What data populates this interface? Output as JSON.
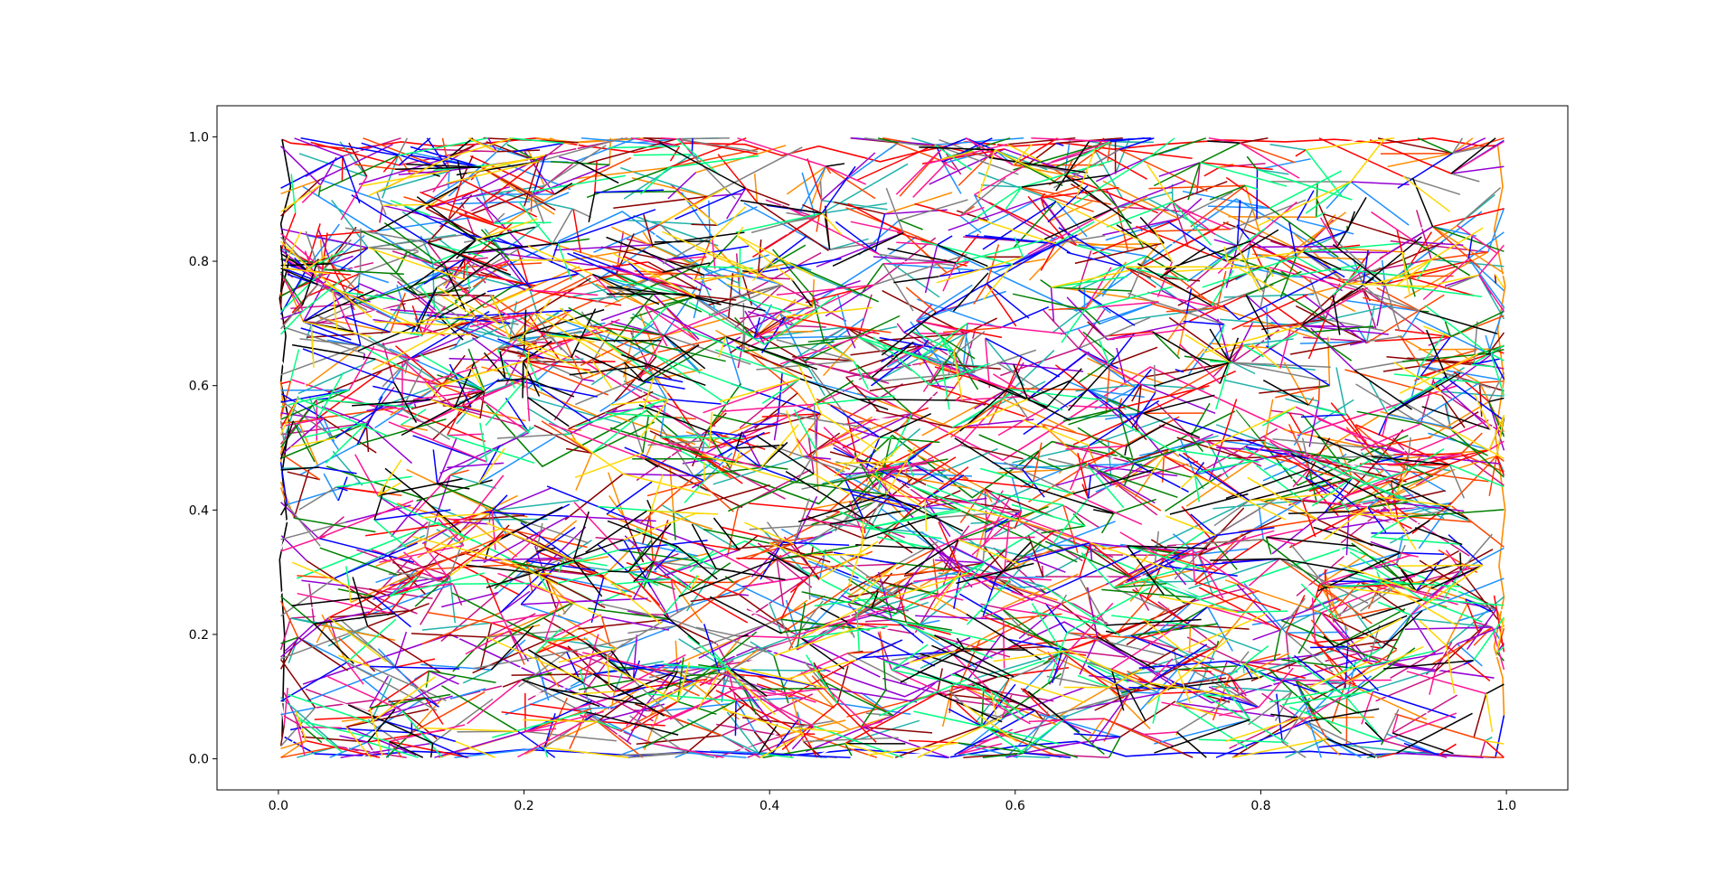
{
  "chart_data": {
    "type": "line",
    "title": "",
    "xlabel": "",
    "ylabel": "",
    "xlim": [
      -0.05,
      1.05
    ],
    "ylim": [
      -0.05,
      1.05
    ],
    "x_ticks": [
      0.0,
      0.2,
      0.4,
      0.6,
      0.8,
      1.0
    ],
    "x_tick_labels": [
      "0.0",
      "0.2",
      "0.4",
      "0.6",
      "0.8",
      "1.0"
    ],
    "y_ticks": [
      0.0,
      0.2,
      0.4,
      0.6,
      0.8,
      1.0
    ],
    "y_tick_labels": [
      "0.0",
      "0.2",
      "0.4",
      "0.6",
      "0.8",
      "1.0"
    ],
    "grid": false,
    "legend": "none",
    "palette": [
      "#ff0000",
      "#0000ff",
      "#000000",
      "#ff8c00",
      "#1e90ff",
      "#ff1493",
      "#00ff7f",
      "#9400d3",
      "#008000",
      "#c71585",
      "#ffd700",
      "#20b2aa",
      "#ffffff",
      "#808080",
      "#ff4500",
      "#8b0000"
    ],
    "series": [
      {
        "x": [
          0.003,
          0.01,
          0.035,
          0.06,
          0.1,
          0.13,
          0.16,
          0.21,
          0.25,
          0.29,
          0.33,
          0.38,
          0.41,
          0.44,
          0.49,
          0.52,
          0.56,
          0.6,
          0.64,
          0.68,
          0.72,
          0.77,
          0.82,
          0.86,
          0.9,
          0.94,
          0.98,
          0.993
        ],
        "y": [
          0.996,
          0.99,
          0.985,
          0.98,
          0.992,
          0.985,
          0.988,
          0.998,
          0.985,
          0.975,
          0.99,
          0.988,
          0.97,
          0.985,
          0.96,
          0.975,
          0.992,
          0.985,
          0.99,
          0.98,
          0.988,
          0.995,
          0.992,
          0.996,
          0.99,
          0.998,
          0.985,
          0.986
        ]
      },
      {
        "x": [
          0.005,
          0.03,
          0.07,
          0.11,
          0.16,
          0.2,
          0.25,
          0.29,
          0.34,
          0.38,
          0.42,
          0.47,
          0.51,
          0.545,
          0.6,
          0.65,
          0.69,
          0.74,
          0.79,
          0.84,
          0.88,
          0.93,
          0.97,
          0.991,
          0.998
        ],
        "y": [
          0.035,
          0.008,
          0.005,
          0.012,
          0.008,
          0.015,
          0.01,
          0.005,
          0.012,
          0.008,
          0.006,
          0.015,
          0.01,
          0.002,
          0.02,
          0.028,
          0.004,
          0.01,
          0.008,
          0.012,
          0.006,
          0.01,
          0.004,
          0.002,
          0.07
        ]
      },
      {
        "x": [
          0.003,
          0.01,
          0.002,
          0.008,
          0.001,
          0.006,
          0.002,
          0.009,
          0.003,
          0.007,
          0.001,
          0.005,
          0.003
        ],
        "y": [
          0.996,
          0.92,
          0.86,
          0.795,
          0.74,
          0.68,
          0.605,
          0.54,
          0.46,
          0.38,
          0.32,
          0.2,
          0.035
        ]
      },
      {
        "x": [
          0.993,
          0.997,
          0.99,
          0.999,
          0.993,
          0.998,
          0.991,
          0.999,
          0.994,
          0.998,
          0.99,
          0.997,
          0.998
        ],
        "y": [
          0.986,
          0.92,
          0.85,
          0.76,
          0.69,
          0.61,
          0.52,
          0.4,
          0.31,
          0.26,
          0.18,
          0.13,
          0.07
        ]
      },
      {
        "x": [
          0.02,
          0.15,
          0.28,
          0.41,
          0.52,
          0.65,
          0.78,
          0.9,
          0.98
        ],
        "y": [
          0.92,
          0.76,
          0.88,
          0.7,
          0.84,
          0.72,
          0.9,
          0.76,
          0.88
        ]
      },
      {
        "x": [
          0.01,
          0.12,
          0.24,
          0.36,
          0.47,
          0.59,
          0.71,
          0.83,
          0.96
        ],
        "y": [
          0.61,
          0.54,
          0.65,
          0.5,
          0.6,
          0.48,
          0.63,
          0.52,
          0.6
        ]
      },
      {
        "x": [
          0.015,
          0.13,
          0.26,
          0.38,
          0.5,
          0.62,
          0.75,
          0.87,
          0.985
        ],
        "y": [
          0.29,
          0.38,
          0.25,
          0.35,
          0.23,
          0.37,
          0.26,
          0.34,
          0.25
        ]
      },
      {
        "x": [
          0.02,
          0.14,
          0.27,
          0.39,
          0.51,
          0.64,
          0.76,
          0.88,
          0.99
        ],
        "y": [
          0.12,
          0.2,
          0.08,
          0.18,
          0.1,
          0.22,
          0.09,
          0.16,
          0.13
        ]
      },
      {
        "x": [
          0.16,
          0.215,
          0.3,
          0.355,
          0.44,
          0.5,
          0.565,
          0.63,
          0.7,
          0.78,
          0.83,
          0.92
        ],
        "y": [
          0.59,
          0.47,
          0.56,
          0.47,
          0.41,
          0.52,
          0.42,
          0.51,
          0.48,
          0.56,
          0.44,
          0.52
        ]
      }
    ]
  }
}
